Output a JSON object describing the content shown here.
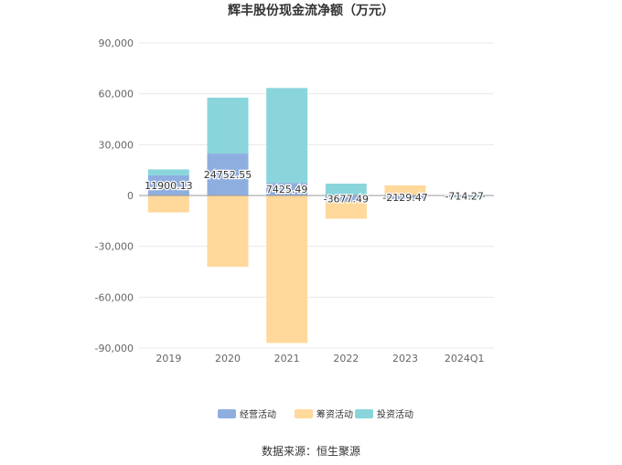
{
  "chart_data": {
    "type": "bar",
    "stacked": true,
    "title": "辉丰股份现金流净额（万元）",
    "categories": [
      "2019",
      "2020",
      "2021",
      "2022",
      "2023",
      "2024Q1"
    ],
    "series": [
      {
        "name": "经营活动",
        "values": [
          11900.13,
          24752.55,
          7425.49,
          -3677.49,
          -2129.47,
          -714.27
        ]
      },
      {
        "name": "筹资活动",
        "values": [
          -10000,
          -42000,
          -87000,
          -10000,
          6000,
          0
        ]
      },
      {
        "name": "投资活动",
        "values": [
          3500,
          33000,
          56000,
          7000,
          0,
          -300
        ]
      }
    ],
    "data_labels": [
      "11900.13",
      "24752.55",
      "7425.49",
      "-3677.49",
      "-2129.47",
      "-714.27"
    ],
    "y_ticks": [
      "90,000",
      "60,000",
      "30,000",
      "0",
      "-30,000",
      "-60,000",
      "-90,000"
    ],
    "ylim": [
      -90000,
      90000
    ],
    "grid": true,
    "legend_position": "bottom",
    "colors": [
      "#8eaedf",
      "#ffd89b",
      "#8ad5dc"
    ]
  },
  "source_text": "数据来源：恒生聚源"
}
